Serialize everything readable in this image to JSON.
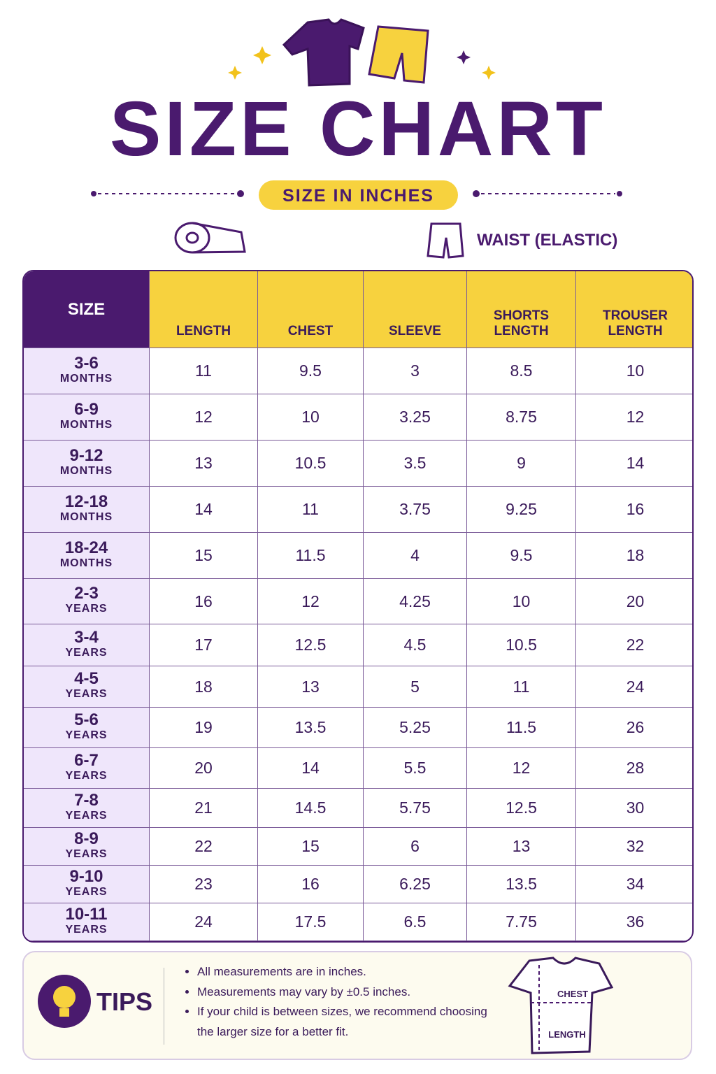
{
  "header": {
    "title": "SIZE CHART",
    "subtitle": "SIZE IN INCHES",
    "waist_note": "WAIST (ELASTIC)"
  },
  "table": {
    "columns": [
      "SIZE",
      "LENGTH",
      "CHEST",
      "SLEEVE",
      "SHORTS LENGTH",
      "TROUSER LENGTH"
    ],
    "rows": [
      [
        "3-6",
        "MONTHS",
        11,
        9.5,
        3,
        8.5,
        10
      ],
      [
        "6-9",
        "MONTHS",
        12,
        10,
        3.25,
        8.75,
        12
      ],
      [
        "9-12",
        "MONTHS",
        13,
        10.5,
        3.5,
        9,
        14
      ],
      [
        "12-18",
        "MONTHS",
        14,
        11,
        3.75,
        9.25,
        16
      ],
      [
        "18-24",
        "MONTHS",
        15,
        11.5,
        4,
        9.5,
        18
      ],
      [
        "2-3",
        "YEARS",
        16,
        12,
        4.25,
        10,
        20
      ],
      [
        "3-4",
        "YEARS",
        17,
        12.5,
        4.5,
        10.5,
        22
      ],
      [
        "4-5",
        "YEARS",
        18,
        13,
        5,
        11,
        24
      ],
      [
        "5-6",
        "YEARS",
        19,
        13.5,
        5.25,
        11.5,
        26
      ],
      [
        "6-7",
        "YEARS",
        20,
        14,
        5.5,
        12,
        28
      ],
      [
        "7-8",
        "YEARS",
        21,
        14.5,
        5.75,
        12.5,
        30
      ],
      [
        "8-9",
        "YEARS",
        22,
        15,
        6,
        13,
        32
      ],
      [
        "9-10",
        "YEARS",
        23,
        16,
        6.25,
        13.5,
        34
      ],
      [
        "10-11",
        "YEARS",
        24,
        17.5,
        6.5,
        7.75,
        36
      ]
    ]
  },
  "tips": {
    "title": "TIPS",
    "items": [
      "All measurements are in inches.",
      "Measurements may vary by ±0.5 inches.",
      "If your child is between sizes, we recommend choosing the larger size for a better fit."
    ],
    "diagram": {
      "chest": "CHEST",
      "length": "LENGTH"
    }
  }
}
